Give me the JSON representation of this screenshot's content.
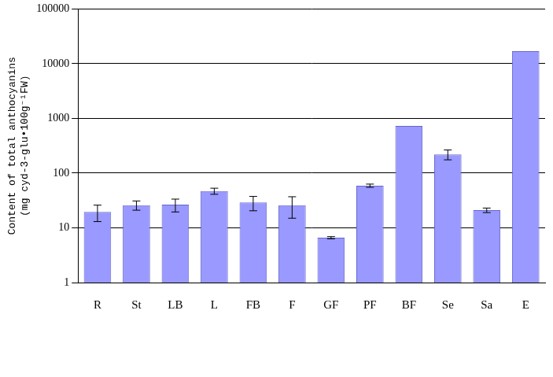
{
  "chart_data": {
    "type": "bar",
    "y_label": [
      "Content of total anthocyanins",
      "(mg cyd-3-glu•100g⁻¹FW)"
    ],
    "categories": [
      "R",
      "St",
      "LB",
      "L",
      "FB",
      "F",
      "GF",
      "PF",
      "BF",
      "Se",
      "Sa",
      "E"
    ],
    "values": [
      19.5,
      26,
      26.5,
      47,
      29,
      26,
      6.6,
      59,
      730,
      220,
      21,
      17000
    ],
    "errors": [
      6.5,
      5,
      7,
      6,
      8.5,
      11,
      0.3,
      4,
      null,
      45,
      2,
      null
    ],
    "color": "#9999ff",
    "log": "y",
    "ylim": [
      1,
      100000
    ],
    "yticks": [
      1,
      10,
      100,
      1000,
      10000,
      100000
    ],
    "grid": true
  }
}
